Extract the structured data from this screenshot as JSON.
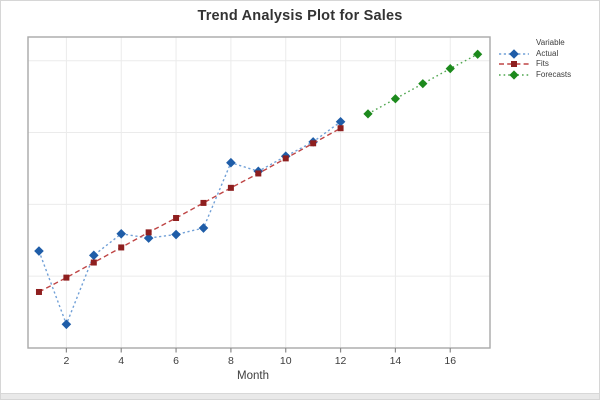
{
  "figure": {
    "title": "Trend Analysis Plot for Sales",
    "xlabel": "Month"
  },
  "legend": {
    "header": "Variable",
    "items": [
      {
        "label": "Actual"
      },
      {
        "label": "Fits"
      },
      {
        "label": "Forecasts"
      }
    ]
  },
  "colors": {
    "background": "#ffffff",
    "frame_border": "#d6d6d6",
    "bottom_strip": "#e9e9e9",
    "plot_border": "#a9a9a9",
    "gridline": "#ebebeb",
    "tick_mark": "#8a8a8a",
    "title_text": "#333333",
    "axis_text": "#3d3d3d",
    "legend_text": "#3d3d3d",
    "actual_marker": "#1f5da8",
    "actual_line": "#71a0d7",
    "fits_marker": "#8e1f1f",
    "fits_line": "#bf4545",
    "forecasts_marker": "#1d8a1d",
    "forecasts_line": "#4fa64f"
  },
  "chart_data": {
    "type": "line",
    "title": "Trend Analysis Plot for Sales",
    "xlabel": "Month",
    "ylabel": "",
    "xlim": [
      0.6,
      17.45
    ],
    "ylim": [
      0,
      4.33
    ],
    "x_ticks": [
      2,
      4,
      6,
      8,
      10,
      12,
      14,
      16
    ],
    "y_tick_labels": [],
    "y_gridline_values": [
      1,
      2,
      3,
      4
    ],
    "grid": true,
    "legend_position": "right-outside",
    "legend_header": "Variable",
    "series": [
      {
        "name": "Actual",
        "role": "observed-data",
        "marker": "diamond",
        "marker_size": 3.8,
        "marker_color": "#1f5da8",
        "line_color": "#71a0d7",
        "line_dash": "2.2 2.6",
        "x": [
          1,
          2,
          3,
          4,
          5,
          6,
          7,
          8,
          9,
          10,
          11,
          12
        ],
        "y": [
          1.35,
          0.33,
          1.29,
          1.59,
          1.53,
          1.58,
          1.67,
          2.58,
          2.46,
          2.67,
          2.87,
          3.15
        ]
      },
      {
        "name": "Fits",
        "role": "linear-trend-fit",
        "marker": "square",
        "marker_size": 3.0,
        "marker_color": "#8e1f1f",
        "line_color": "#bf4545",
        "line_dash": "5 3.2",
        "x": [
          1,
          2,
          3,
          4,
          5,
          6,
          7,
          8,
          9,
          10,
          11,
          12
        ],
        "y": [
          0.78,
          0.98,
          1.19,
          1.4,
          1.61,
          1.81,
          2.02,
          2.23,
          2.43,
          2.64,
          2.85,
          3.06
        ]
      },
      {
        "name": "Forecasts",
        "role": "forecast",
        "marker": "diamond",
        "marker_size": 3.6,
        "marker_color": "#1d8a1d",
        "line_color": "#4fa64f",
        "line_dash": "1.6 3",
        "x": [
          13,
          14,
          15,
          16,
          17
        ],
        "y": [
          3.26,
          3.47,
          3.68,
          3.89,
          4.09
        ]
      }
    ]
  }
}
